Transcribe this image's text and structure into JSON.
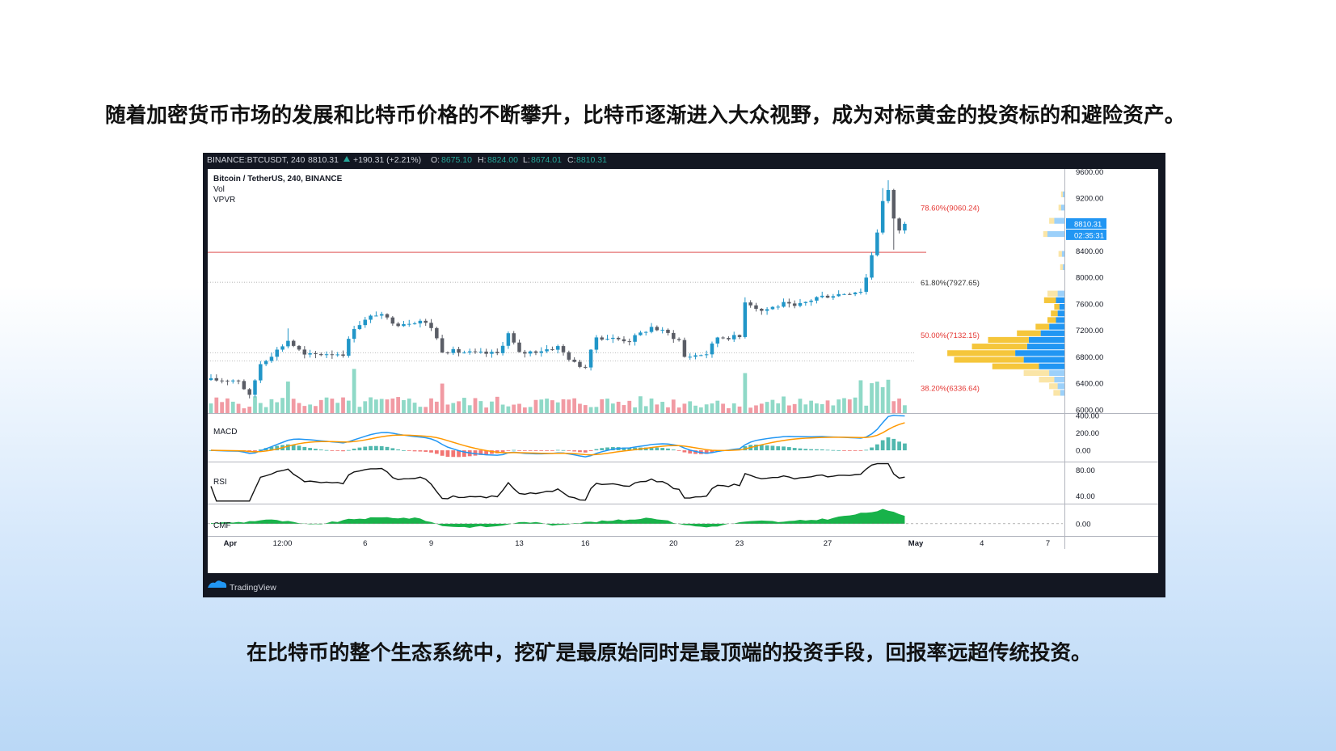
{
  "captions": {
    "top": "随着加密货币市场的发展和比特币价格的不断攀升，比特币逐渐进入大众视野，成为对标黄金的投资标的和避险资产。",
    "bottom": "在比特币的整个生态系统中，挖矿是最原始同时是最顶端的投资手段，回报率远超传统投资。"
  },
  "chart_header": {
    "symbol": "BINANCE:BTCUSDT, 240",
    "last": "8810.31",
    "change": "+190.31 (+2.21%)",
    "o_label": "O:",
    "o_value": "8675.10",
    "h_label": "H:",
    "h_value": "8824.00",
    "l_label": "L:",
    "l_value": "8674.01",
    "c_label": "C:",
    "c_value": "8810.31"
  },
  "legend": {
    "title": "Bitcoin / TetherUS, 240, BINANCE",
    "vol": "Vol",
    "vpvr": "VPVR"
  },
  "branding": "TradingView",
  "colors": {
    "up": "#2196c8",
    "down": "#5a5d66",
    "vol_up": "#8fd9c7",
    "vol_down": "#f19aa3",
    "macd_line": "#2196f3",
    "signal_line": "#ff9800",
    "fib_red": "#e53935",
    "vpvr_blue": "#2196f3",
    "vpvr_yellow": "#f5c63b",
    "cmf_fill": "#18b24a",
    "price_tag": "#2196f3"
  },
  "chart_data": {
    "type": "candlestick",
    "x_tick_labels": [
      "Apr",
      "12:00",
      "6",
      "9",
      "13",
      "16",
      "20",
      "23",
      "27",
      "May",
      "4",
      "7"
    ],
    "x_tick_positions": [
      3.5,
      13,
      28,
      40,
      56,
      68,
      84,
      96,
      112,
      128,
      140,
      152
    ],
    "x_range": [
      0,
      155
    ],
    "candles_count": 127,
    "price_panel": {
      "y_ticks": [
        "9600.00",
        "9200.00",
        "8800.00",
        "8400.00",
        "8000.00",
        "7600.00",
        "7200.00",
        "6800.00",
        "6400.00",
        "6000.00"
      ],
      "ylim": [
        5950,
        9640
      ],
      "current_price": "8810.31",
      "countdown": "02:35:31",
      "horizontal_level": 8380,
      "fib_levels": [
        {
          "label": "78.60%(9060.24)",
          "value": 9060.24,
          "color": "red"
        },
        {
          "label": "61.80%(7927.65)",
          "value": 7927.65,
          "color": "dark"
        },
        {
          "label": "50.00%(7132.15)",
          "value": 7132.15,
          "color": "red"
        },
        {
          "label": "38.20%(6336.64)",
          "value": 6336.64,
          "color": "red"
        }
      ],
      "close_anchors": [
        [
          0,
          6450
        ],
        [
          5,
          6450
        ],
        [
          7,
          6200
        ],
        [
          9,
          6700
        ],
        [
          12,
          6900
        ],
        [
          14,
          7050
        ],
        [
          17,
          6820
        ],
        [
          21,
          6850
        ],
        [
          24,
          6850
        ],
        [
          26,
          7250
        ],
        [
          30,
          7450
        ],
        [
          34,
          7300
        ],
        [
          38,
          7350
        ],
        [
          40,
          7250
        ],
        [
          42,
          6900
        ],
        [
          48,
          6850
        ],
        [
          52,
          6850
        ],
        [
          54,
          7150
        ],
        [
          56,
          6850
        ],
        [
          60,
          6900
        ],
        [
          63,
          6950
        ],
        [
          66,
          6700
        ],
        [
          68,
          6650
        ],
        [
          70,
          7100
        ],
        [
          76,
          7050
        ],
        [
          80,
          7250
        ],
        [
          83,
          7150
        ],
        [
          85,
          7050
        ],
        [
          86,
          6800
        ],
        [
          90,
          6850
        ],
        [
          92,
          7100
        ],
        [
          96,
          7100
        ],
        [
          97,
          7650
        ],
        [
          100,
          7500
        ],
        [
          104,
          7600
        ],
        [
          106,
          7550
        ],
        [
          110,
          7700
        ],
        [
          114,
          7750
        ],
        [
          118,
          7800
        ],
        [
          119,
          8000
        ],
        [
          120,
          8350
        ],
        [
          121,
          8700
        ],
        [
          122,
          9150
        ],
        [
          123,
          9300
        ],
        [
          124,
          8900
        ],
        [
          125,
          8700
        ],
        [
          126,
          8810.31
        ]
      ]
    },
    "volume_panel": {
      "label": "Vol",
      "scale_max": 100
    },
    "vpvr_profile": {
      "price_bins": [
        6250,
        6350,
        6450,
        6550,
        6650,
        6750,
        6850,
        6950,
        7050,
        7150,
        7250,
        7350,
        7450,
        7550,
        7650,
        7750,
        8150,
        8350,
        8650,
        8850,
        9050,
        9250
      ],
      "up_volume": [
        8,
        10,
        18,
        30,
        55,
        82,
        80,
        65,
        48,
        28,
        16,
        10,
        8,
        6,
        14,
        12,
        3,
        4,
        5,
        6,
        3,
        2
      ],
      "down_volume": [
        5,
        8,
        12,
        18,
        30,
        48,
        58,
        44,
        42,
        28,
        18,
        10,
        8,
        6,
        10,
        8,
        2,
        3,
        20,
        12,
        4,
        2
      ]
    },
    "macd_panel": {
      "label": "MACD",
      "y_ticks": [
        "400.00",
        "200.00",
        "0.00"
      ],
      "ylim": [
        -130,
        420
      ]
    },
    "rsi_panel": {
      "label": "RSI",
      "y_ticks": [
        "80.00",
        "40.00"
      ],
      "ylim": [
        28,
        92
      ]
    },
    "cmf_panel": {
      "label": "CMF",
      "y_ticks": [
        "0.00"
      ],
      "ylim": [
        -0.35,
        0.55
      ],
      "anchors": [
        [
          0,
          0.02
        ],
        [
          6,
          0.05
        ],
        [
          10,
          0.12
        ],
        [
          14,
          0.06
        ],
        [
          18,
          -0.04
        ],
        [
          22,
          0.04
        ],
        [
          26,
          0.14
        ],
        [
          32,
          0.18
        ],
        [
          38,
          0.15
        ],
        [
          42,
          -0.06
        ],
        [
          46,
          -0.1
        ],
        [
          52,
          -0.08
        ],
        [
          55,
          0.02
        ],
        [
          58,
          0.05
        ],
        [
          62,
          -0.04
        ],
        [
          66,
          0.02
        ],
        [
          70,
          0.06
        ],
        [
          76,
          0.12
        ],
        [
          80,
          0.18
        ],
        [
          84,
          0.04
        ],
        [
          87,
          -0.06
        ],
        [
          90,
          -0.1
        ],
        [
          93,
          -0.04
        ],
        [
          96,
          0.04
        ],
        [
          100,
          0.08
        ],
        [
          104,
          0.05
        ],
        [
          108,
          0.1
        ],
        [
          112,
          0.14
        ],
        [
          116,
          0.24
        ],
        [
          120,
          0.34
        ],
        [
          122,
          0.4
        ],
        [
          124,
          0.32
        ],
        [
          126,
          0.24
        ]
      ]
    }
  }
}
